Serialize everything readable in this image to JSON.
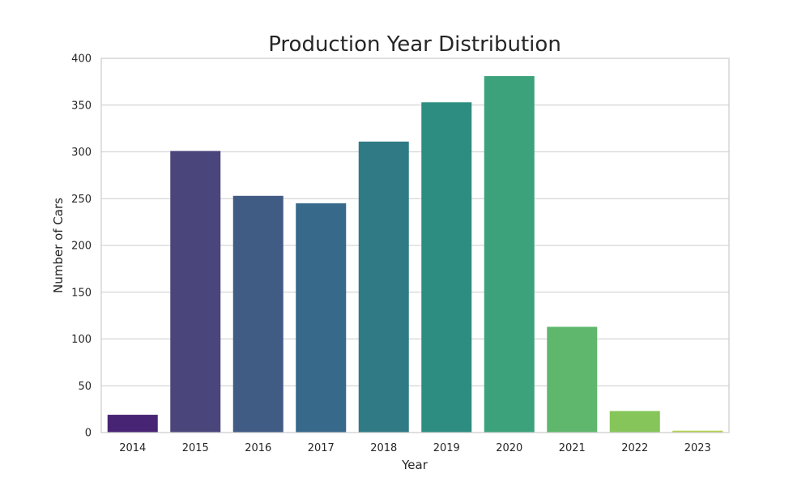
{
  "chart_data": {
    "type": "bar",
    "title": "Production Year Distribution",
    "xlabel": "Year",
    "ylabel": "Number of Cars",
    "categories": [
      "2014",
      "2015",
      "2016",
      "2017",
      "2018",
      "2019",
      "2020",
      "2021",
      "2022",
      "2023"
    ],
    "values": [
      19,
      301,
      253,
      245,
      311,
      353,
      381,
      113,
      23,
      2
    ],
    "ylim": [
      0,
      400
    ],
    "yticks": [
      "0",
      "50",
      "100",
      "150",
      "200",
      "250",
      "300",
      "350",
      "400"
    ],
    "grid": true,
    "colors": [
      "#482475",
      "#4a467c",
      "#405b84",
      "#36698a",
      "#2f7a84",
      "#2d8d80",
      "#3ca27c",
      "#5fb76d",
      "#86c559",
      "#b5d14e"
    ]
  }
}
